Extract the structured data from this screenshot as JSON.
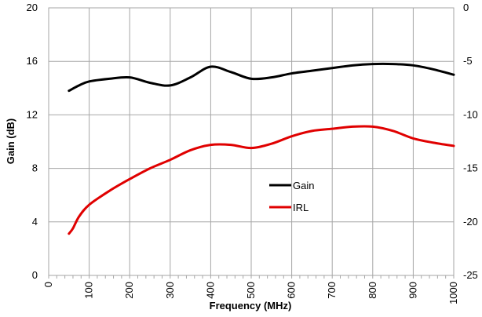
{
  "chart_data": {
    "type": "line",
    "title": "",
    "xlabel": "Frequency (MHz)",
    "ylabel": "Gain (dB)",
    "xlim": [
      0,
      1000
    ],
    "ylim": [
      0,
      20
    ],
    "y2lim": [
      -25,
      0
    ],
    "grid": true,
    "x_ticks": [
      0,
      100,
      200,
      300,
      400,
      500,
      600,
      700,
      800,
      900,
      1000
    ],
    "y_ticks": [
      0,
      4,
      8,
      12,
      16,
      20
    ],
    "y2_ticks": [
      -25,
      -20,
      -15,
      -10,
      -5,
      0
    ],
    "legend_position": "center",
    "series": [
      {
        "name": "Gain",
        "axis": "left",
        "color": "#000000",
        "x": [
          50,
          75,
          100,
          150,
          200,
          250,
          300,
          350,
          400,
          450,
          500,
          550,
          600,
          650,
          700,
          750,
          800,
          850,
          900,
          950,
          1000
        ],
        "y": [
          13.8,
          14.2,
          14.5,
          14.7,
          14.8,
          14.4,
          14.2,
          14.8,
          15.6,
          15.2,
          14.7,
          14.8,
          15.1,
          15.3,
          15.5,
          15.7,
          15.8,
          15.8,
          15.7,
          15.4,
          15.0
        ]
      },
      {
        "name": "IRL",
        "axis": "right",
        "color": "#e00000",
        "x": [
          50,
          60,
          75,
          100,
          150,
          200,
          250,
          300,
          350,
          400,
          450,
          500,
          550,
          600,
          650,
          700,
          750,
          800,
          850,
          900,
          950,
          1000
        ],
        "y": [
          -21.1,
          -20.6,
          -19.5,
          -18.4,
          -17.1,
          -16.0,
          -15.0,
          -14.2,
          -13.3,
          -12.8,
          -12.8,
          -13.1,
          -12.7,
          -12.0,
          -11.5,
          -11.3,
          -11.1,
          -11.1,
          -11.5,
          -12.2,
          -12.6,
          -12.9
        ]
      }
    ]
  }
}
